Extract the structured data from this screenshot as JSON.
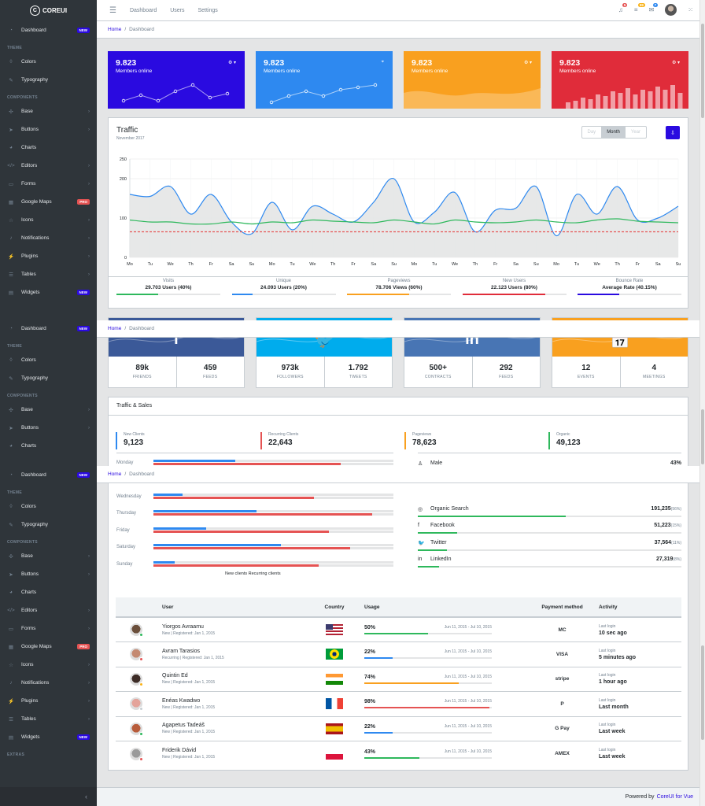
{
  "brand": {
    "name": "COREUI"
  },
  "sidebar": {
    "blocks": [
      [
        {
          "type": "item",
          "label": "Dashboard",
          "icon": "speedometer-icon",
          "badge": "NEW",
          "badge_kind": "new"
        },
        {
          "type": "title",
          "label": "THEME"
        },
        {
          "type": "item",
          "label": "Colors",
          "icon": "drop-icon"
        },
        {
          "type": "item",
          "label": "Typography",
          "icon": "pencil-icon"
        },
        {
          "type": "title",
          "label": "COMPONENTS"
        },
        {
          "type": "item",
          "label": "Base",
          "icon": "puzzle-icon",
          "chevron": true
        },
        {
          "type": "item",
          "label": "Buttons",
          "icon": "cursor-icon",
          "chevron": true
        },
        {
          "type": "item",
          "label": "Charts",
          "icon": "pie-chart-icon"
        },
        {
          "type": "item",
          "label": "Editors",
          "icon": "code-icon",
          "chevron": true
        },
        {
          "type": "item",
          "label": "Forms",
          "icon": "note-icon",
          "chevron": true
        },
        {
          "type": "item",
          "label": "Google Maps",
          "icon": "map-icon",
          "badge": "PRO",
          "badge_kind": "pro"
        },
        {
          "type": "item",
          "label": "Icons",
          "icon": "star-icon",
          "chevron": true
        },
        {
          "type": "item",
          "label": "Notifications",
          "icon": "bell-icon",
          "chevron": true
        },
        {
          "type": "item",
          "label": "Plugins",
          "icon": "energy-icon",
          "chevron": true
        },
        {
          "type": "item",
          "label": "Tables",
          "icon": "list-icon",
          "chevron": true
        },
        {
          "type": "item",
          "label": "Widgets",
          "icon": "calculator-icon",
          "badge": "NEW",
          "badge_kind": "new"
        }
      ],
      [
        {
          "type": "item",
          "label": "Dashboard",
          "icon": "speedometer-icon",
          "badge": "NEW",
          "badge_kind": "new"
        },
        {
          "type": "title",
          "label": "THEME"
        },
        {
          "type": "item",
          "label": "Colors",
          "icon": "drop-icon"
        },
        {
          "type": "item",
          "label": "Typography",
          "icon": "pencil-icon"
        },
        {
          "type": "title",
          "label": "COMPONENTS"
        },
        {
          "type": "item",
          "label": "Base",
          "icon": "puzzle-icon",
          "chevron": true
        },
        {
          "type": "item",
          "label": "Buttons",
          "icon": "cursor-icon",
          "chevron": true
        },
        {
          "type": "item",
          "label": "Charts",
          "icon": "pie-chart-icon"
        }
      ],
      [
        {
          "type": "item",
          "label": "Dashboard",
          "icon": "speedometer-icon",
          "badge": "NEW",
          "badge_kind": "new"
        },
        {
          "type": "title",
          "label": "THEME"
        },
        {
          "type": "item",
          "label": "Colors",
          "icon": "drop-icon"
        },
        {
          "type": "item",
          "label": "Typography",
          "icon": "pencil-icon"
        },
        {
          "type": "title",
          "label": "COMPONENTS"
        },
        {
          "type": "item",
          "label": "Base",
          "icon": "puzzle-icon",
          "chevron": true
        },
        {
          "type": "item",
          "label": "Buttons",
          "icon": "cursor-icon",
          "chevron": true
        },
        {
          "type": "item",
          "label": "Charts",
          "icon": "pie-chart-icon"
        },
        {
          "type": "item",
          "label": "Editors",
          "icon": "code-icon",
          "chevron": true
        },
        {
          "type": "item",
          "label": "Forms",
          "icon": "note-icon",
          "chevron": true
        },
        {
          "type": "item",
          "label": "Google Maps",
          "icon": "map-icon",
          "badge": "PRO",
          "badge_kind": "pro"
        },
        {
          "type": "item",
          "label": "Icons",
          "icon": "star-icon",
          "chevron": true
        },
        {
          "type": "item",
          "label": "Notifications",
          "icon": "bell-icon",
          "chevron": true
        },
        {
          "type": "item",
          "label": "Plugins",
          "icon": "energy-icon",
          "chevron": true
        },
        {
          "type": "item",
          "label": "Tables",
          "icon": "list-icon",
          "chevron": true
        },
        {
          "type": "item",
          "label": "Widgets",
          "icon": "calculator-icon",
          "badge": "NEW",
          "badge_kind": "new"
        },
        {
          "type": "title",
          "label": "EXTRAS"
        }
      ]
    ],
    "toggler_icon": "chevron-left-icon"
  },
  "header": {
    "nav": [
      "Dashboard",
      "Users",
      "Settings"
    ],
    "badges": {
      "bell": "5",
      "list": "99",
      "pin": "7"
    }
  },
  "breadcrumb": {
    "home": "Home",
    "current": "Dashboard"
  },
  "stats": [
    {
      "value": "9.823",
      "label": "Members online",
      "color": "#2a0ae0"
    },
    {
      "value": "9.823",
      "label": "Members online",
      "color": "#2e89f0"
    },
    {
      "value": "9.823",
      "label": "Members online",
      "color": "#f9a01f"
    },
    {
      "value": "9.823",
      "label": "Members online",
      "color": "#e02c3a"
    }
  ],
  "traffic": {
    "title": "Traffic",
    "subtitle": "November 2017",
    "ranges": [
      "Day",
      "Month",
      "Year"
    ],
    "active_range": "Month",
    "footer": [
      {
        "title": "Visits",
        "value": "29.703 Users (40%)",
        "percent": 40,
        "color": "#2eb85c"
      },
      {
        "title": "Unique",
        "value": "24.093 Users (20%)",
        "percent": 20,
        "color": "#2e89f0"
      },
      {
        "title": "Pageviews",
        "value": "78.706 Views (60%)",
        "percent": 60,
        "color": "#f9a01f"
      },
      {
        "title": "New Users",
        "value": "22.123 Users (80%)",
        "percent": 80,
        "color": "#e02c3a"
      },
      {
        "title": "Bounce Rate",
        "value": "Average Rate (40.15%)",
        "percent": 40,
        "color": "#2a0ae0"
      }
    ]
  },
  "chart_data": {
    "type": "line",
    "title": "Traffic",
    "subtitle": "November 2017",
    "xlabel": "",
    "ylabel": "",
    "ylim": [
      0,
      250
    ],
    "yticks": [
      0,
      100,
      200,
      250
    ],
    "grid": true,
    "categories": [
      "Mo",
      "Tu",
      "We",
      "Th",
      "Fr",
      "Sa",
      "Su",
      "Mo",
      "Tu",
      "We",
      "Th",
      "Fr",
      "Sa",
      "Su",
      "Mo",
      "Tu",
      "We",
      "Th",
      "Fr",
      "Sa",
      "Su",
      "Mo",
      "Tu",
      "We",
      "Th",
      "Fr",
      "Sa",
      "Su"
    ],
    "series": [
      {
        "values": [
          160,
          155,
          180,
          110,
          160,
          90,
          60,
          140,
          70,
          130,
          110,
          90,
          140,
          200,
          90,
          115,
          165,
          65,
          120,
          125,
          180,
          55,
          160,
          110,
          180,
          95,
          100,
          130
        ],
        "color": "#2e89f0",
        "fill": "#e4e5e6"
      },
      {
        "values": [
          95,
          90,
          90,
          85,
          85,
          90,
          85,
          90,
          88,
          95,
          92,
          90,
          88,
          95,
          90,
          85,
          95,
          90,
          88,
          90,
          95,
          90,
          88,
          95,
          98,
          92,
          90,
          88
        ],
        "color": "#2eb85c"
      },
      {
        "values": [
          65,
          65,
          65,
          65,
          65,
          65,
          65,
          65,
          65,
          65,
          65,
          65,
          65,
          65,
          65,
          65,
          65,
          65,
          65,
          65,
          65,
          65,
          65,
          65,
          65,
          65,
          65,
          65
        ],
        "color": "#e55353",
        "dashed": true
      }
    ]
  },
  "social": [
    {
      "icon": "facebook-icon",
      "glyph": "f",
      "color": "#3b5998",
      "a_num": "89k",
      "a_lab": "FRIENDS",
      "b_num": "459",
      "b_lab": "FEEDS"
    },
    {
      "icon": "twitter-icon",
      "glyph": "🐦",
      "color": "#00aced",
      "a_num": "973k",
      "a_lab": "FOLLOWERS",
      "b_num": "1.792",
      "b_lab": "TWEETS"
    },
    {
      "icon": "linkedin-icon",
      "glyph": "in",
      "color": "#4875b4",
      "a_num": "500+",
      "a_lab": "CONTRACTS",
      "b_num": "292",
      "b_lab": "FEEDS"
    },
    {
      "icon": "calendar-icon",
      "glyph": "📅",
      "color": "#f9a01f",
      "a_num": "12",
      "a_lab": "EVENTS",
      "b_num": "4",
      "b_lab": "MEETINGS"
    }
  ],
  "sales": {
    "title": "Traffic & Sales",
    "callouts": [
      {
        "title": "New Clients",
        "value": "9,123",
        "color": "#2e89f0"
      },
      {
        "title": "Recurring Clients",
        "value": "22,643",
        "color": "#e55353"
      },
      {
        "title": "Pageviews",
        "value": "78,623",
        "color": "#f9a01f"
      },
      {
        "title": "Organic",
        "value": "49,123",
        "color": "#2eb85c"
      }
    ],
    "days": [
      {
        "name": "Monday",
        "new": 34,
        "rec": 78
      },
      {
        "name": "Wednesday",
        "new": 12,
        "rec": 67
      },
      {
        "name": "Thursday",
        "new": 43,
        "rec": 91
      },
      {
        "name": "Friday",
        "new": 22,
        "rec": 73
      },
      {
        "name": "Saturday",
        "new": 53,
        "rec": 82
      },
      {
        "name": "Sunday",
        "new": 9,
        "rec": 69
      }
    ],
    "legend": "New clients Recurring clients",
    "gender": {
      "label": "Male",
      "value": "43%",
      "percent": 43
    },
    "sources": [
      {
        "icon": "globe-icon",
        "glyph": "◎",
        "name": "Organic Search",
        "value": "191,235",
        "pct": "(56%)",
        "percent": 56
      },
      {
        "icon": "facebook-icon",
        "glyph": "f",
        "name": "Facebook",
        "value": "51,223",
        "pct": "(15%)",
        "percent": 15
      },
      {
        "icon": "twitter-icon",
        "glyph": "🐦",
        "name": "Twitter",
        "value": "37,564",
        "pct": "(11%)",
        "percent": 11
      },
      {
        "icon": "linkedin-icon",
        "glyph": "in",
        "name": "LinkedIn",
        "value": "27,319",
        "pct": "(8%)",
        "percent": 8
      }
    ]
  },
  "users_table": {
    "headers": [
      "User",
      "Country",
      "Usage",
      "Payment method",
      "Activity"
    ],
    "rows": [
      {
        "name": "Yiorgos Avraamu",
        "meta": "New | Registered: Jan 1, 2015",
        "status": "#2eb85c",
        "flag": "us",
        "usage": "50%",
        "percent": 50,
        "bar": "#2eb85c",
        "period": "Jun 11, 2015 - Jul 10, 2015",
        "payment": "mastercard-icon",
        "pay_text": "MC",
        "act_t": "Last login",
        "act_v": "10 sec ago"
      },
      {
        "name": "Avram Tarasios",
        "meta": "Recurring | Registered: Jan 1, 2015",
        "status": "#e55353",
        "flag": "br",
        "usage": "22%",
        "percent": 22,
        "bar": "#2e89f0",
        "period": "Jun 11, 2015 - Jul 10, 2015",
        "payment": "visa-icon",
        "pay_text": "VISA",
        "act_t": "Last login",
        "act_v": "5 minutes ago"
      },
      {
        "name": "Quintin Ed",
        "meta": "New | Registered: Jan 1, 2015",
        "status": "#f9b115",
        "flag": "in",
        "usage": "74%",
        "percent": 74,
        "bar": "#f9a01f",
        "period": "Jun 11, 2015 - Jul 10, 2015",
        "payment": "stripe-icon",
        "pay_text": "stripe",
        "act_t": "Last login",
        "act_v": "1 hour ago"
      },
      {
        "name": "Enéas Kwadwo",
        "meta": "New | Registered: Jan 1, 2015",
        "status": "#c8ced3",
        "flag": "fr",
        "usage": "98%",
        "percent": 98,
        "bar": "#e55353",
        "period": "Jun 11, 2015 - Jul 10, 2015",
        "payment": "paypal-icon",
        "pay_text": "P",
        "act_t": "Last login",
        "act_v": "Last month"
      },
      {
        "name": "Agapetus Tadeáš",
        "meta": "New | Registered: Jan 1, 2015",
        "status": "#2eb85c",
        "flag": "es",
        "usage": "22%",
        "percent": 22,
        "bar": "#2e89f0",
        "period": "Jun 11, 2015 - Jul 10, 2015",
        "payment": "google-pay-icon",
        "pay_text": "G Pay",
        "act_t": "Last login",
        "act_v": "Last week"
      },
      {
        "name": "Friderik Dávid",
        "meta": "New | Registered: Jan 1, 2015",
        "status": "#e55353",
        "flag": "pl",
        "usage": "43%",
        "percent": 43,
        "bar": "#2eb85c",
        "period": "Jun 11, 2015 - Jul 10, 2015",
        "payment": "amex-icon",
        "pay_text": "AMEX",
        "act_t": "Last login",
        "act_v": "Last week"
      }
    ]
  },
  "footer": {
    "text": "Powered by",
    "link": "CoreUI for Vue"
  }
}
